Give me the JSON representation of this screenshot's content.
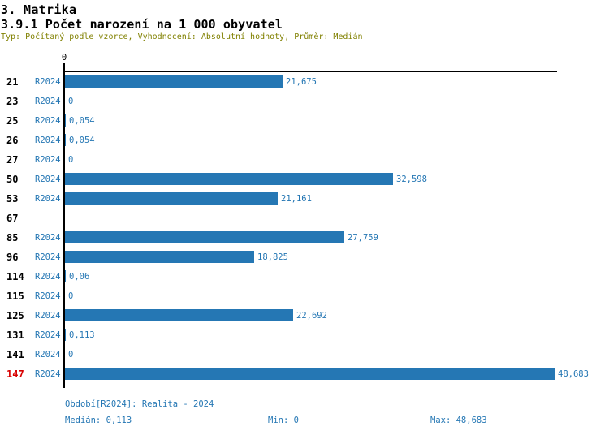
{
  "header": {
    "title": "3. Matrika",
    "subtitle": "3.9.1 Počet narození na 1 000 obyvatel",
    "meta": "Typ: Počítaný podle vzorce, Vyhodnocení: Absolutní hodnoty, Průměr: Medián"
  },
  "colors": {
    "bar": "#2577b4",
    "blue_text": "#2577b4",
    "meta_text": "#808000",
    "highlight_text": "#d80000",
    "axis": "#000000"
  },
  "chart_data": {
    "type": "bar",
    "orientation": "horizontal",
    "title": "3.9.1 Počet narození na 1 000 obyvatel",
    "series_label": "R2024",
    "axis_zero_label": "0",
    "xlim": [
      0,
      48.683
    ],
    "rows": [
      {
        "id": "21",
        "period": "R2024",
        "value": 21.675,
        "label": "21,675",
        "highlight": false
      },
      {
        "id": "23",
        "period": "R2024",
        "value": 0,
        "label": "0",
        "highlight": false
      },
      {
        "id": "25",
        "period": "R2024",
        "value": 0.054,
        "label": "0,054",
        "highlight": false
      },
      {
        "id": "26",
        "period": "R2024",
        "value": 0.054,
        "label": "0,054",
        "highlight": false
      },
      {
        "id": "27",
        "period": "R2024",
        "value": 0,
        "label": "0",
        "highlight": false
      },
      {
        "id": "50",
        "period": "R2024",
        "value": 32.598,
        "label": "32,598",
        "highlight": false
      },
      {
        "id": "53",
        "period": "R2024",
        "value": 21.161,
        "label": "21,161",
        "highlight": false
      },
      {
        "id": "67",
        "period": null,
        "value": null,
        "label": null,
        "highlight": false
      },
      {
        "id": "85",
        "period": "R2024",
        "value": 27.759,
        "label": "27,759",
        "highlight": false
      },
      {
        "id": "96",
        "period": "R2024",
        "value": 18.825,
        "label": "18,825",
        "highlight": false
      },
      {
        "id": "114",
        "period": "R2024",
        "value": 0.06,
        "label": "0,06",
        "highlight": false
      },
      {
        "id": "115",
        "period": "R2024",
        "value": 0,
        "label": "0",
        "highlight": false
      },
      {
        "id": "125",
        "period": "R2024",
        "value": 22.692,
        "label": "22,692",
        "highlight": false
      },
      {
        "id": "131",
        "period": "R2024",
        "value": 0.113,
        "label": "0,113",
        "highlight": false
      },
      {
        "id": "141",
        "period": "R2024",
        "value": 0,
        "label": "0",
        "highlight": false
      },
      {
        "id": "147",
        "period": "R2024",
        "value": 48.683,
        "label": "48,683",
        "highlight": true
      }
    ]
  },
  "footer": {
    "period_line": "Období[R2024]: Realita - 2024",
    "median": "Medián: 0,113",
    "min": "Min: 0",
    "max": "Max: 48,683"
  }
}
